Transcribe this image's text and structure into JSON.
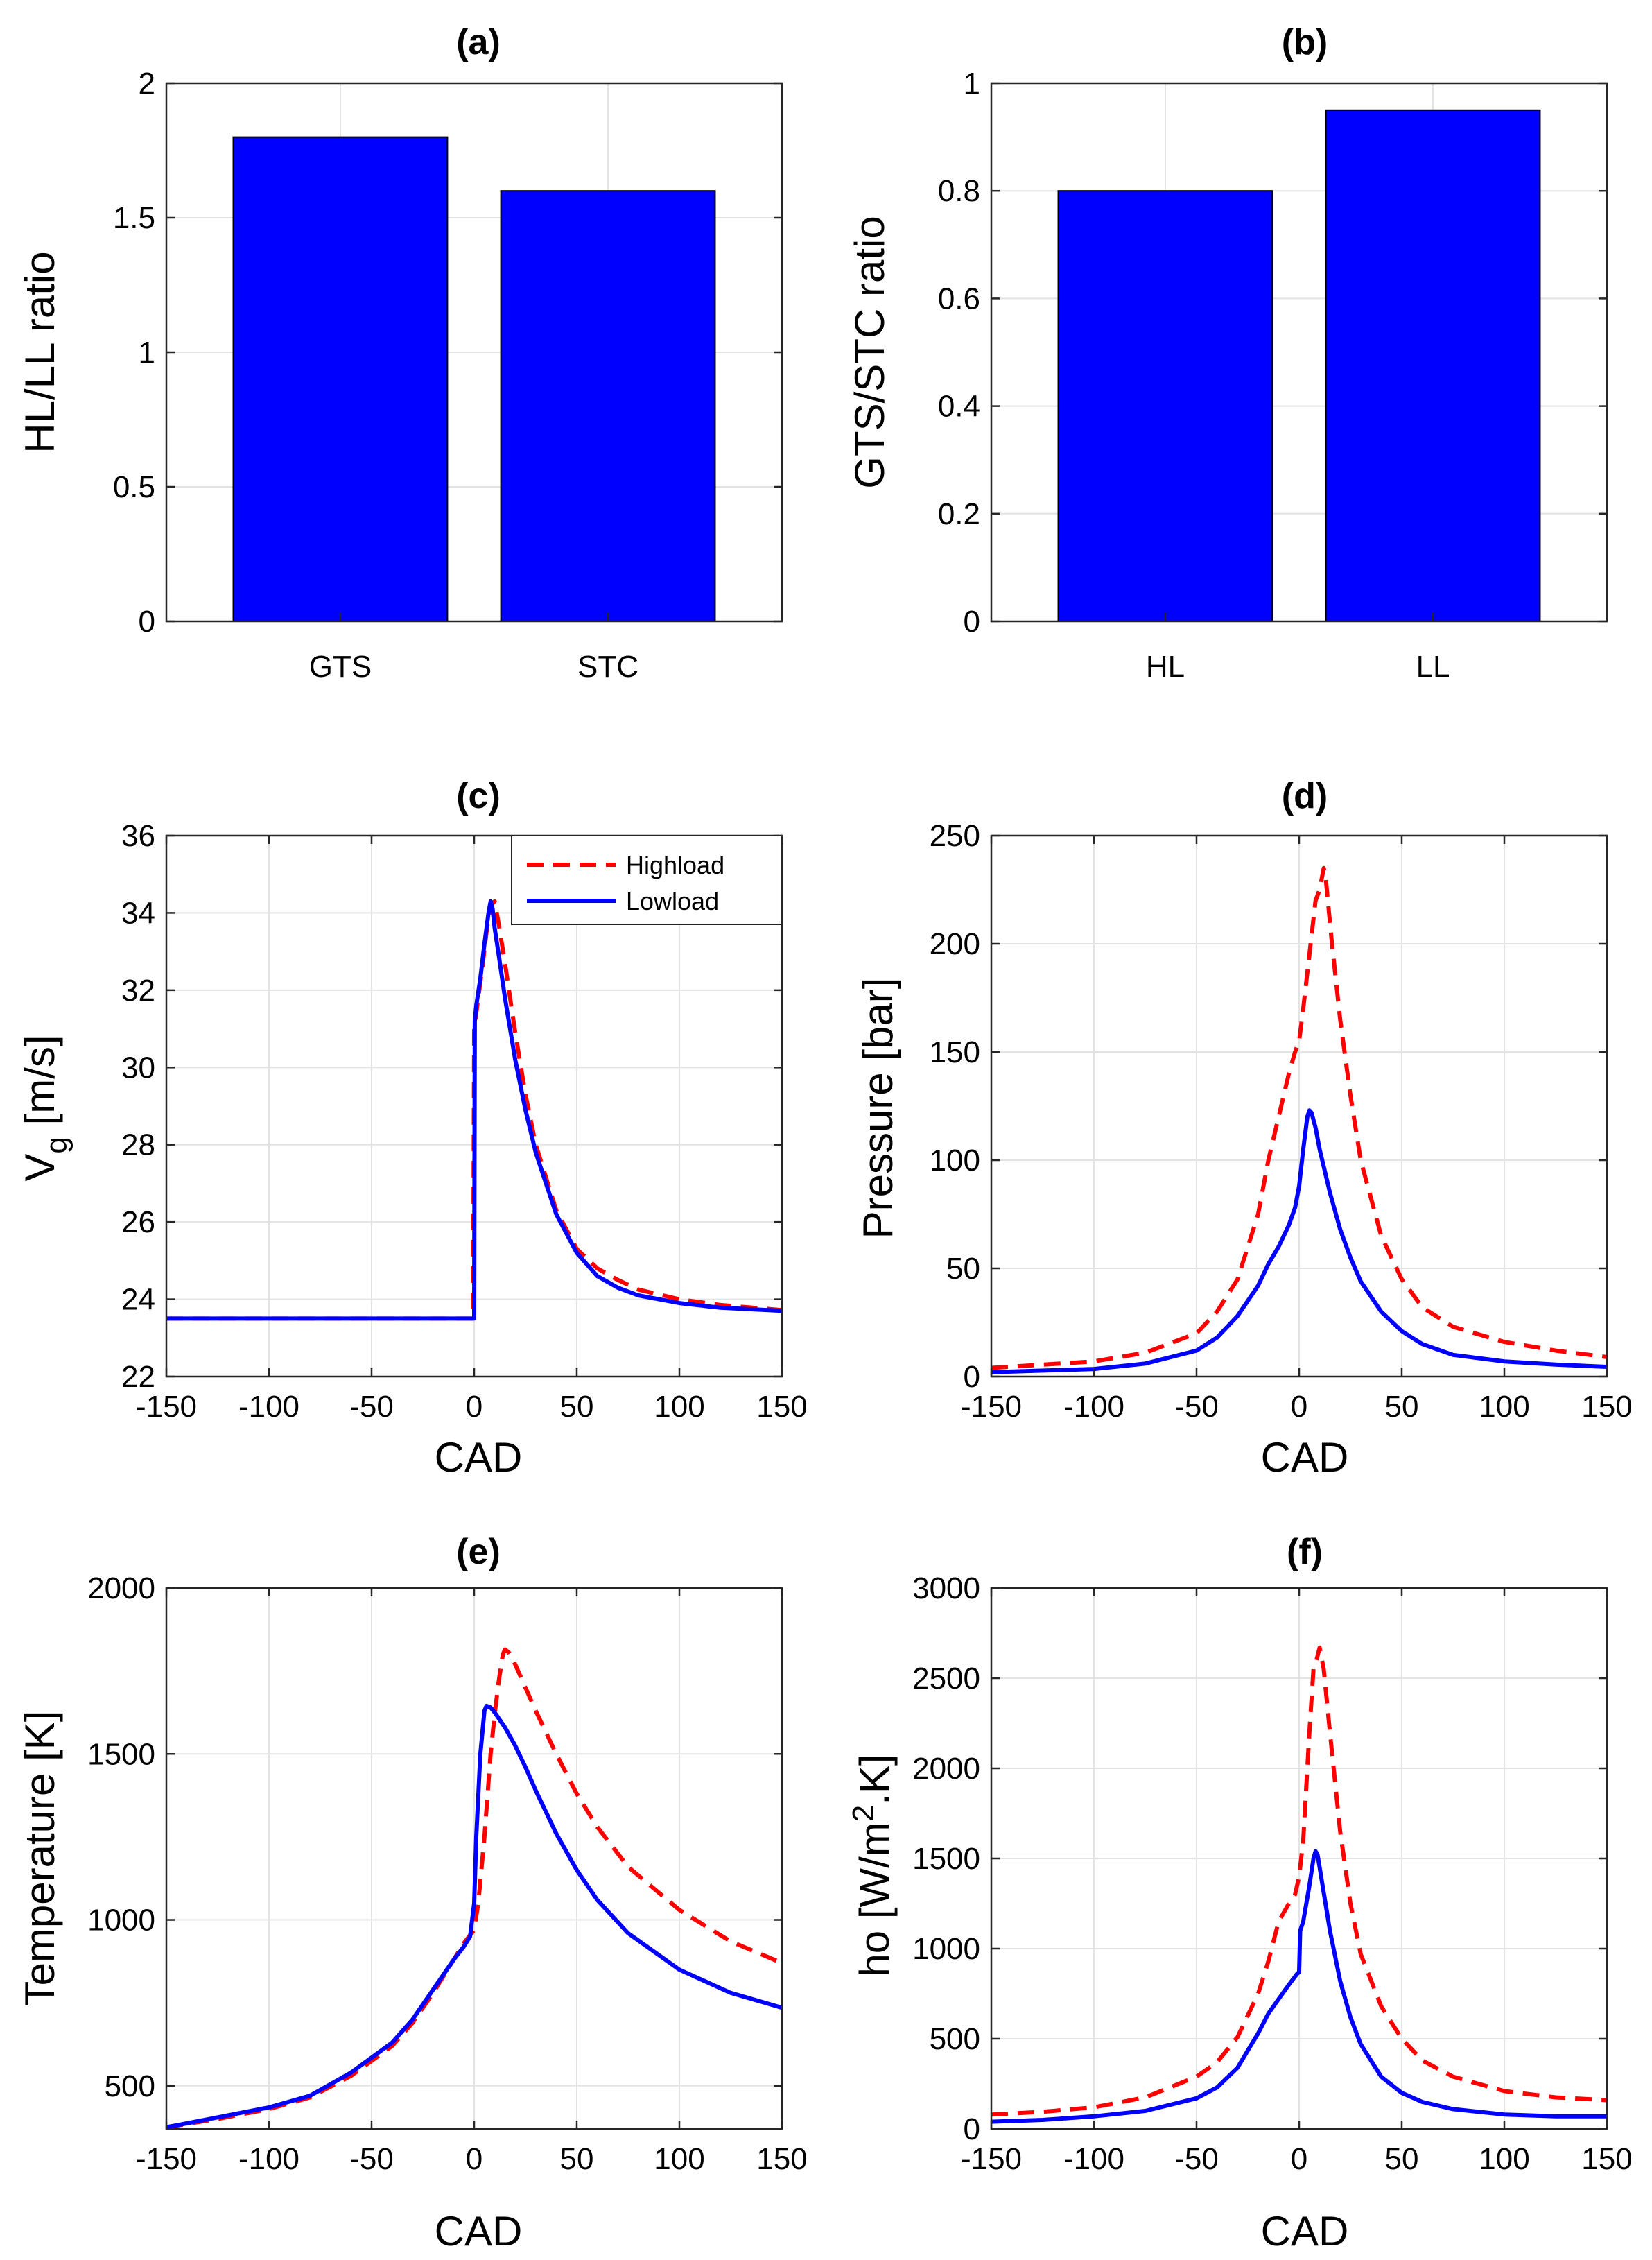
{
  "chart_data": [
    {
      "id": "a",
      "type": "bar",
      "title": "(a)",
      "categories": [
        "GTS",
        "STC"
      ],
      "values": [
        1.8,
        1.6
      ],
      "xlim": [
        0.35,
        2.65
      ],
      "ylim": [
        0,
        2
      ],
      "yticks": [
        "0",
        "0.5",
        "1",
        "1.5",
        "2"
      ],
      "ytick_values": [
        0,
        0.5,
        1,
        1.5,
        2
      ],
      "xlabel": "",
      "ylabel": "HL/LL ratio",
      "bar_color": "#0000ff",
      "grid": true
    },
    {
      "id": "b",
      "type": "bar",
      "title": "(b)",
      "categories": [
        "HL",
        "LL"
      ],
      "values": [
        0.8,
        0.95
      ],
      "xlim": [
        0.35,
        2.65
      ],
      "ylim": [
        0,
        1
      ],
      "yticks": [
        "0",
        "0.2",
        "0.4",
        "0.6",
        "0.8",
        "1"
      ],
      "ytick_values": [
        0,
        0.2,
        0.4,
        0.6,
        0.8,
        1
      ],
      "xlabel": "",
      "ylabel": "GTS/STC ratio",
      "bar_color": "#0000ff",
      "grid": true
    },
    {
      "id": "c",
      "type": "line",
      "title": "(c)",
      "xlabel": "CAD",
      "ylabel": "V",
      "ylabel_sub": "g",
      "ylabel_rest": " [m/s]",
      "xlim": [
        -150,
        150
      ],
      "ylim": [
        22,
        36
      ],
      "xticks": [
        "-150",
        "-100",
        "-50",
        "0",
        "50",
        "100",
        "150"
      ],
      "xtick_values": [
        -150,
        -100,
        -50,
        0,
        50,
        100,
        150
      ],
      "yticks": [
        "22",
        "24",
        "26",
        "28",
        "30",
        "32",
        "34",
        "36"
      ],
      "ytick_values": [
        22,
        24,
        26,
        28,
        30,
        32,
        34,
        36
      ],
      "legend": {
        "position": "top-right",
        "entries": [
          "Highload",
          "Lowload"
        ]
      },
      "series": [
        {
          "name": "Highload",
          "color": "#ff0000",
          "dashed": true,
          "x": [
            -150,
            -100,
            -50,
            -1,
            -0.5,
            0,
            2,
            4,
            6,
            8,
            10,
            12,
            15,
            20,
            25,
            30,
            40,
            50,
            60,
            70,
            80,
            100,
            120,
            150
          ],
          "y": [
            23.5,
            23.5,
            23.5,
            23.5,
            23.5,
            31,
            31.8,
            32.6,
            33.5,
            34.2,
            34.3,
            33.7,
            32.7,
            30.9,
            29.3,
            28,
            26.3,
            25.3,
            24.8,
            24.5,
            24.25,
            24.0,
            23.85,
            23.72
          ]
        },
        {
          "name": "Lowload",
          "color": "#0000ff",
          "dashed": false,
          "x": [
            -150,
            -100,
            -50,
            0,
            0.3,
            1,
            3,
            5,
            7,
            8,
            9,
            10,
            12,
            15,
            20,
            25,
            30,
            40,
            50,
            60,
            70,
            80,
            100,
            120,
            150
          ],
          "y": [
            23.5,
            23.5,
            23.5,
            23.5,
            31.2,
            31.6,
            32.3,
            33.2,
            34.0,
            34.3,
            34.1,
            33.6,
            32.9,
            31.8,
            30.2,
            28.9,
            27.8,
            26.2,
            25.2,
            24.6,
            24.3,
            24.1,
            23.9,
            23.78,
            23.7
          ]
        }
      ],
      "grid": true
    },
    {
      "id": "d",
      "type": "line",
      "title": "(d)",
      "xlabel": "CAD",
      "ylabel": "Pressure [bar]",
      "xlim": [
        -150,
        150
      ],
      "ylim": [
        0,
        250
      ],
      "xticks": [
        "-150",
        "-100",
        "-50",
        "0",
        "50",
        "100",
        "150"
      ],
      "xtick_values": [
        -150,
        -100,
        -50,
        0,
        50,
        100,
        150
      ],
      "yticks": [
        "0",
        "50",
        "100",
        "150",
        "200",
        "250"
      ],
      "ytick_values": [
        0,
        50,
        100,
        150,
        200,
        250
      ],
      "series": [
        {
          "name": "Highload",
          "color": "#ff0000",
          "dashed": true,
          "x": [
            -150,
            -100,
            -75,
            -50,
            -40,
            -30,
            -20,
            -15,
            -10,
            -5,
            -2,
            0,
            2,
            5,
            8,
            10,
            12,
            13,
            14,
            16,
            20,
            25,
            30,
            40,
            50,
            60,
            75,
            100,
            125,
            150
          ],
          "y": [
            4,
            7,
            11,
            20,
            30,
            45,
            75,
            100,
            120,
            140,
            150,
            155,
            170,
            195,
            220,
            225,
            235,
            230,
            220,
            200,
            165,
            130,
            100,
            65,
            45,
            32,
            23,
            16,
            12,
            9
          ]
        },
        {
          "name": "Lowload",
          "color": "#0000ff",
          "dashed": false,
          "x": [
            -150,
            -100,
            -75,
            -50,
            -40,
            -30,
            -20,
            -15,
            -10,
            -5,
            -2,
            0,
            2,
            4,
            5,
            6,
            8,
            10,
            15,
            20,
            25,
            30,
            40,
            50,
            60,
            75,
            100,
            125,
            150
          ],
          "y": [
            2,
            3.5,
            6,
            12,
            18,
            28,
            42,
            52,
            60,
            70,
            78,
            88,
            105,
            120,
            123,
            122,
            115,
            105,
            85,
            68,
            55,
            44,
            30,
            21,
            15,
            10,
            7,
            5.5,
            4.5
          ]
        }
      ],
      "grid": true
    },
    {
      "id": "e",
      "type": "line",
      "title": "(e)",
      "xlabel": "CAD",
      "ylabel": "Temperature [K]",
      "xlim": [
        -150,
        150
      ],
      "ylim": [
        370,
        2000
      ],
      "xticks": [
        "-150",
        "-100",
        "-50",
        "0",
        "50",
        "100",
        "150"
      ],
      "xtick_values": [
        -150,
        -100,
        -50,
        0,
        50,
        100,
        150
      ],
      "yticks": [
        "500",
        "1000",
        "1500",
        "2000"
      ],
      "ytick_values": [
        500,
        1000,
        1500,
        2000
      ],
      "series": [
        {
          "name": "Highload",
          "color": "#ff0000",
          "dashed": true,
          "x": [
            -150,
            -125,
            -100,
            -80,
            -60,
            -40,
            -30,
            -20,
            -10,
            -5,
            0,
            2,
            5,
            8,
            10,
            12,
            14,
            15,
            17,
            20,
            25,
            30,
            40,
            50,
            60,
            75,
            100,
            125,
            150
          ],
          "y": [
            375,
            400,
            430,
            465,
            530,
            620,
            690,
            780,
            880,
            930,
            970,
            1050,
            1250,
            1500,
            1620,
            1720,
            1800,
            1815,
            1805,
            1770,
            1700,
            1630,
            1500,
            1380,
            1280,
            1160,
            1030,
            935,
            870
          ]
        },
        {
          "name": "Lowload",
          "color": "#0000ff",
          "dashed": false,
          "x": [
            -150,
            -125,
            -100,
            -80,
            -60,
            -40,
            -30,
            -20,
            -10,
            -5,
            -2,
            0,
            1,
            3,
            5,
            6,
            8,
            10,
            15,
            20,
            25,
            30,
            40,
            50,
            60,
            75,
            100,
            125,
            150
          ],
          "y": [
            375,
            405,
            435,
            470,
            540,
            630,
            700,
            790,
            880,
            920,
            950,
            1050,
            1250,
            1500,
            1630,
            1645,
            1640,
            1625,
            1580,
            1525,
            1460,
            1390,
            1260,
            1150,
            1060,
            960,
            850,
            780,
            735
          ]
        }
      ],
      "grid": true
    },
    {
      "id": "f",
      "type": "line",
      "title": "(f)",
      "xlabel": "CAD",
      "ylabel": "ho [W/m",
      "ylabel_sup": "2",
      "ylabel_rest": ".K]",
      "xlim": [
        -150,
        150
      ],
      "ylim": [
        0,
        3000
      ],
      "xticks": [
        "-150",
        "-100",
        "-50",
        "0",
        "50",
        "100",
        "150"
      ],
      "xtick_values": [
        -150,
        -100,
        -50,
        0,
        50,
        100,
        150
      ],
      "yticks": [
        "0",
        "500",
        "1000",
        "1500",
        "2000",
        "2500",
        "3000"
      ],
      "ytick_values": [
        0,
        500,
        1000,
        1500,
        2000,
        2500,
        3000
      ],
      "series": [
        {
          "name": "Highload",
          "color": "#ff0000",
          "dashed": true,
          "x": [
            -150,
            -125,
            -100,
            -75,
            -50,
            -40,
            -30,
            -20,
            -15,
            -10,
            -5,
            -2,
            0,
            2,
            5,
            7,
            8,
            10,
            12,
            15,
            20,
            25,
            30,
            40,
            50,
            60,
            75,
            100,
            125,
            150
          ],
          "y": [
            80,
            95,
            120,
            175,
            290,
            370,
            510,
            750,
            930,
            1150,
            1250,
            1300,
            1400,
            1600,
            2200,
            2550,
            2580,
            2670,
            2550,
            2200,
            1650,
            1250,
            970,
            680,
            500,
            380,
            290,
            210,
            175,
            160
          ]
        },
        {
          "name": "Lowload",
          "color": "#0000ff",
          "dashed": false,
          "x": [
            -150,
            -125,
            -100,
            -75,
            -50,
            -40,
            -30,
            -20,
            -15,
            -10,
            -5,
            -1,
            0,
            0.5,
            2,
            5,
            7,
            8,
            9,
            10,
            15,
            20,
            25,
            30,
            40,
            50,
            60,
            75,
            100,
            125,
            150
          ],
          "y": [
            40,
            50,
            70,
            100,
            170,
            230,
            340,
            530,
            640,
            720,
            800,
            860,
            870,
            1100,
            1150,
            1350,
            1500,
            1540,
            1520,
            1450,
            1100,
            820,
            620,
            470,
            290,
            200,
            150,
            110,
            80,
            70,
            70
          ]
        }
      ],
      "grid": true
    }
  ]
}
